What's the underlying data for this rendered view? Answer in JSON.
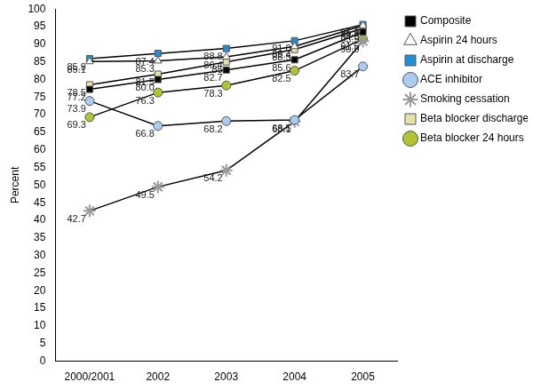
{
  "chart_data": {
    "type": "line",
    "y_label": "Percent",
    "categories": [
      "2000/2001",
      "2002",
      "2003",
      "2004",
      "2005"
    ],
    "ylim": [
      0,
      100
    ],
    "yticks": [
      0,
      5,
      10,
      15,
      20,
      25,
      30,
      35,
      40,
      45,
      50,
      55,
      60,
      65,
      70,
      75,
      80,
      85,
      90,
      95,
      100
    ],
    "grid": false,
    "legend": "right",
    "data_labels": true,
    "series": [
      {
        "name": "Composite",
        "color": "#000000",
        "marker": "square",
        "values": [
          77.2,
          80.0,
          82.7,
          85.6,
          93.5
        ],
        "value_labels": [
          "77.2",
          "80.0",
          "82.7",
          "85.6",
          "93.5"
        ]
      },
      {
        "name": "Aspirin 24 hours",
        "color": "#ffffff",
        "marker": "triangle",
        "values": [
          85.1,
          85.3,
          86.4,
          89.4,
          95.3
        ],
        "value_labels": [
          "85.1",
          "85.3",
          "86.4",
          "89.4",
          "95.3"
        ]
      },
      {
        "name": "Aspirin at discharge",
        "color": "#1f8fd6",
        "marker": "square",
        "values": [
          85.9,
          87.4,
          88.8,
          91.0,
          95.6
        ],
        "value_labels": [
          "85.9",
          "87.4",
          "88.8",
          "91.0",
          "95.6"
        ]
      },
      {
        "name": "ACE inhibitor",
        "color": "#a8cdf0",
        "marker": "circle",
        "values": [
          73.9,
          66.8,
          68.2,
          68.5,
          83.7
        ],
        "value_labels": [
          "73.9",
          "66.8",
          "68.2",
          "68.5",
          "83.7"
        ]
      },
      {
        "name": "Smoking cessation",
        "color": "#999999",
        "marker": "star",
        "values": [
          42.7,
          49.5,
          54.2,
          68.1,
          90.9
        ],
        "value_labels": [
          "42.7",
          "49.5",
          "54.2",
          "68.1",
          "90.9"
        ]
      },
      {
        "name": "Beta blocker discharge",
        "color": "#e6e2a6",
        "marker": "square",
        "values": [
          78.5,
          81.5,
          85,
          88.5,
          94.5
        ],
        "value_labels": [
          "78.5",
          "81.5",
          "85",
          "88.5",
          "94.5"
        ]
      },
      {
        "name": "Beta blocker 24 hours",
        "color": "#b3c231",
        "marker": "circle",
        "values": [
          69.3,
          76.3,
          78.3,
          82.5,
          91.5
        ],
        "value_labels": [
          "69.3",
          "76.3",
          "78.3",
          "82.5",
          "91.5"
        ]
      }
    ]
  }
}
